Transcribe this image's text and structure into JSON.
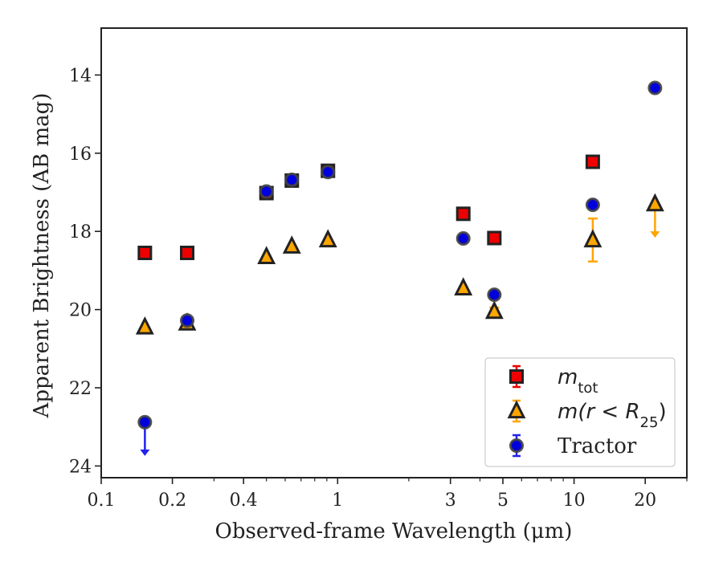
{
  "chart_data": {
    "type": "scatter",
    "xlabel": "Observed-frame Wavelength (μm)",
    "ylabel": "Apparent Brightness (AB mag)",
    "xscale": "log",
    "xlim": [
      0.1,
      30
    ],
    "ylim": [
      24.3,
      12.8
    ],
    "y_inverted": true,
    "x_ticks": [
      {
        "value": 0.1,
        "label": "0.1"
      },
      {
        "value": 0.2,
        "label": "0.2"
      },
      {
        "value": 0.4,
        "label": "0.4"
      },
      {
        "value": 1,
        "label": "1"
      },
      {
        "value": 3,
        "label": "3"
      },
      {
        "value": 5,
        "label": "5"
      },
      {
        "value": 10,
        "label": "10"
      },
      {
        "value": 20,
        "label": "20"
      }
    ],
    "y_ticks": [
      {
        "value": 14,
        "label": "14"
      },
      {
        "value": 16,
        "label": "16"
      },
      {
        "value": 18,
        "label": "18"
      },
      {
        "value": 20,
        "label": "20"
      },
      {
        "value": 22,
        "label": "22"
      },
      {
        "value": 24,
        "label": "24"
      }
    ],
    "legend_position": "lower-right",
    "series": [
      {
        "key": "mtot",
        "legend_main": "m",
        "legend_sub": "tot",
        "marker": "square",
        "fill": "#ee0000",
        "edge": "#222222",
        "errcolor": "#ee0000",
        "points": [
          {
            "x": 0.153,
            "y": 18.55
          },
          {
            "x": 0.231,
            "y": 18.55
          },
          {
            "x": 0.5,
            "y": 17.02
          },
          {
            "x": 0.64,
            "y": 16.7
          },
          {
            "x": 0.91,
            "y": 16.45
          },
          {
            "x": 3.4,
            "y": 17.55
          },
          {
            "x": 4.6,
            "y": 18.17
          },
          {
            "x": 12.0,
            "y": 16.22
          }
        ]
      },
      {
        "key": "mr25",
        "legend_main": "m(r < R",
        "legend_sub": "25",
        "legend_tail": ")",
        "marker": "triangle",
        "fill": "#ffa500",
        "edge": "#222222",
        "errcolor": "#ffa500",
        "points": [
          {
            "x": 0.153,
            "y": 20.45
          },
          {
            "x": 0.231,
            "y": 20.35
          },
          {
            "x": 0.5,
            "y": 18.65
          },
          {
            "x": 0.64,
            "y": 18.38
          },
          {
            "x": 0.91,
            "y": 18.22
          },
          {
            "x": 3.4,
            "y": 19.45
          },
          {
            "x": 4.6,
            "y": 20.05,
            "err": 0.1
          },
          {
            "x": 12.0,
            "y": 18.22,
            "err": 0.55
          },
          {
            "x": 22.0,
            "y": 17.3,
            "upper_limit": true
          }
        ]
      },
      {
        "key": "tractor",
        "legend_main": "Tractor",
        "marker": "circle",
        "fill": "#0000dd",
        "edge": "#444444",
        "errcolor": "#2222ee",
        "points": [
          {
            "x": 0.153,
            "y": 22.88,
            "upper_limit": true
          },
          {
            "x": 0.231,
            "y": 20.28
          },
          {
            "x": 0.5,
            "y": 16.98
          },
          {
            "x": 0.64,
            "y": 16.68
          },
          {
            "x": 0.91,
            "y": 16.48
          },
          {
            "x": 3.4,
            "y": 18.18
          },
          {
            "x": 4.6,
            "y": 19.62
          },
          {
            "x": 12.0,
            "y": 17.32
          },
          {
            "x": 22.0,
            "y": 14.33
          }
        ]
      }
    ]
  }
}
